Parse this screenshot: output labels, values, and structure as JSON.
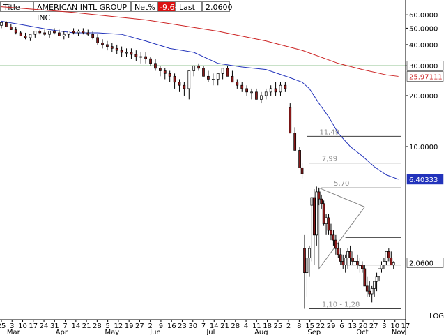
{
  "header": {
    "title_label": "Title",
    "title_value": "AMERICAN INTL GROUP INC",
    "netpct_label": "Net%",
    "netpct_value": "-9.64",
    "last_label": "Last",
    "last_value": "2.0600"
  },
  "colors": {
    "ma_long": "#cc2222",
    "ma_short": "#2233bb",
    "hline": "#228822",
    "candle_up": "#ffffff",
    "candle_down": "#8b1a1a",
    "annotation": "#a0a0a0"
  },
  "chart_data": {
    "type": "candlestick",
    "scale": "log",
    "ylim": [
      0.95,
      72
    ],
    "y_ticks": [
      "60.0000",
      "50.0000",
      "40.0000",
      "30.0000",
      "20.0000",
      "10.0000"
    ],
    "y_tick_values": [
      60,
      50,
      40,
      30,
      20,
      10
    ],
    "xlim": [
      0,
      168
    ],
    "x_day_ticks": [
      "25",
      "3",
      "10",
      "17",
      "24",
      "31",
      "7",
      "14",
      "21",
      "28",
      "5",
      "12",
      "19",
      "27",
      "2",
      "9",
      "16",
      "23",
      "30",
      "7",
      "14",
      "21",
      "28",
      "4",
      "11",
      "18",
      "25",
      "2",
      "8",
      "15",
      "22",
      "29",
      "6",
      "13",
      "20",
      "27",
      "3",
      "10",
      "17"
    ],
    "x_month_labels": [
      {
        "label": "Mar",
        "x": 5
      },
      {
        "label": "Apr",
        "x": 25
      },
      {
        "label": "May",
        "x": 46
      },
      {
        "label": "Jun",
        "x": 64
      },
      {
        "label": "Jul",
        "x": 87
      },
      {
        "label": "Aug",
        "x": 108
      },
      {
        "label": "Sep",
        "x": 130
      },
      {
        "label": "Oct",
        "x": 150
      },
      {
        "label": "Nov",
        "x": 165
      }
    ],
    "scale_label": "LOG",
    "tags": [
      {
        "value": 30.0,
        "text": "30.0000",
        "bg": "#ffffff",
        "fg": "#000000"
      },
      {
        "value": 25.97111,
        "text": "25.97111",
        "bg": "#ffffff",
        "fg": "#cc2222"
      },
      {
        "value": 6.40333,
        "text": "6.40333",
        "bg": "#2233bb",
        "fg": "#ffffff"
      },
      {
        "value": 2.06,
        "text": "2.0600",
        "bg": "#ffffff",
        "fg": "#000000"
      }
    ],
    "ma_long": {
      "x": [
        0,
        30,
        60,
        90,
        110,
        125,
        140,
        150,
        160,
        165
      ],
      "y": [
        67,
        62,
        56,
        48,
        42,
        37,
        31,
        28.5,
        26.5,
        25.97
      ]
    },
    "ma_short": {
      "x": [
        0,
        10,
        20,
        30,
        40,
        50,
        60,
        70,
        80,
        90,
        100,
        110,
        120,
        125,
        128,
        132,
        136,
        140,
        145,
        150,
        155,
        160,
        165
      ],
      "y": [
        55,
        52,
        49,
        47,
        47,
        46,
        42,
        38,
        36,
        31,
        29.5,
        28.5,
        25.5,
        24,
        22,
        18,
        15,
        12,
        10,
        8.8,
        7.6,
        6.8,
        6.4
      ]
    },
    "horizontal_line": {
      "value": 30.0
    },
    "annotations": [
      {
        "text": "11,49",
        "value": 11.49,
        "x_start": 127,
        "x_end": 166
      },
      {
        "text": "7,99",
        "value": 7.99,
        "x_start": 128,
        "x_end": 166
      },
      {
        "text": "5,70",
        "value": 5.7,
        "x_start": 133,
        "x_end": 166
      },
      {
        "text": "",
        "value": 2.9,
        "x_start": 143,
        "x_end": 166
      },
      {
        "text": "",
        "value": 2.0,
        "x_start": 143,
        "x_end": 166
      },
      {
        "text": "1,10 - 1,28",
        "value": 1.1,
        "x_start": 128,
        "x_end": 166
      }
    ],
    "triangle": [
      [
        132,
        5.7
      ],
      [
        151,
        4.4
      ],
      [
        132,
        1.9
      ]
    ],
    "candles": {
      "x": [
        0,
        2,
        4,
        6,
        8,
        10,
        12,
        14,
        16,
        18,
        20,
        22,
        24,
        26,
        28,
        30,
        32,
        34,
        36,
        38,
        40,
        42,
        44,
        46,
        48,
        50,
        52,
        54,
        56,
        58,
        60,
        62,
        64,
        66,
        68,
        70,
        72,
        74,
        76,
        78,
        80,
        82,
        84,
        86,
        88,
        90,
        92,
        94,
        96,
        98,
        100,
        102,
        104,
        106,
        108,
        110,
        112,
        114,
        116,
        118,
        120,
        122,
        124,
        125,
        126,
        127,
        128,
        129,
        130,
        131,
        132,
        133,
        134,
        135,
        136,
        137,
        138,
        139,
        140,
        141,
        142,
        143,
        144,
        145,
        146,
        147,
        148,
        149,
        150,
        151,
        152,
        153,
        154,
        155,
        156,
        157,
        158,
        159,
        160,
        161,
        162,
        163
      ],
      "open": [
        52,
        54,
        51,
        49,
        47,
        45,
        44,
        46,
        48,
        47,
        46,
        48,
        47,
        45,
        46,
        48,
        47,
        48,
        47,
        46,
        44,
        41,
        40,
        39,
        38,
        37,
        36,
        36,
        35,
        34,
        34,
        33,
        31,
        29,
        28,
        27,
        26,
        24,
        23,
        22,
        28,
        30,
        29,
        26,
        25,
        25,
        27,
        29,
        26,
        24,
        23,
        22,
        21,
        21,
        19,
        20,
        21,
        22,
        21,
        23,
        17,
        12,
        9.5,
        7.5,
        2.5,
        1.8,
        2.2,
        4.5,
        5.0,
        3.0,
        5.4,
        4.9,
        4.6,
        3.5,
        3.8,
        3.2,
        3.0,
        2.8,
        2.5,
        2.3,
        2.1,
        2.0,
        2.2,
        2.4,
        2.2,
        2.1,
        2.1,
        2.0,
        2.0,
        1.9,
        1.5,
        1.4,
        1.35,
        1.45,
        1.6,
        1.7,
        1.9,
        2.0,
        2.1,
        2.4,
        2.2,
        2.0
      ],
      "high": [
        54,
        55,
        53,
        51,
        48,
        47,
        46,
        48,
        49,
        49,
        48,
        50,
        49,
        48,
        48,
        50,
        49,
        50,
        49,
        48,
        46,
        43,
        42,
        41,
        40,
        39,
        38,
        38,
        37,
        36,
        36,
        34,
        33,
        30,
        29,
        28,
        27,
        25,
        24,
        23,
        30,
        31,
        30,
        28,
        27,
        27,
        29,
        30,
        28,
        25,
        24,
        23,
        22,
        22,
        21,
        22,
        23,
        24,
        24,
        24,
        18,
        13,
        10,
        8.0,
        3.0,
        2.2,
        2.6,
        5.0,
        5.6,
        5.8,
        5.7,
        5.2,
        4.8,
        4.0,
        4.0,
        3.5,
        3.2,
        3.0,
        2.7,
        2.5,
        2.3,
        2.3,
        2.5,
        2.6,
        2.4,
        2.3,
        2.3,
        2.2,
        2.1,
        2.0,
        1.7,
        1.6,
        1.5,
        1.6,
        1.8,
        1.9,
        2.1,
        2.2,
        2.3,
        2.5,
        2.4,
        2.1
      ],
      "low": [
        50,
        51,
        49,
        46,
        45,
        43,
        42,
        44,
        46,
        45,
        44,
        46,
        45,
        43,
        44,
        46,
        45,
        46,
        45,
        43,
        40,
        38,
        37,
        36,
        35,
        34,
        34,
        33,
        32,
        31,
        31,
        30,
        28,
        26,
        25,
        24,
        22,
        21,
        20,
        19,
        26,
        28,
        27,
        24,
        23,
        23,
        25,
        26,
        24,
        22,
        21,
        20,
        19,
        19,
        18,
        19,
        20,
        20,
        20,
        21,
        15,
        10,
        8.0,
        6.5,
        1.1,
        1.3,
        1.7,
        2.1,
        2.0,
        2.6,
        4.5,
        4.3,
        3.4,
        3.0,
        3.0,
        2.8,
        2.6,
        2.3,
        2.2,
        2.0,
        1.9,
        1.8,
        1.9,
        2.0,
        2.0,
        1.8,
        1.9,
        1.8,
        1.8,
        1.6,
        1.3,
        1.3,
        1.2,
        1.3,
        1.4,
        1.6,
        1.8,
        1.9,
        2.0,
        2.1,
        2.0,
        1.9
      ],
      "close": [
        54,
        51,
        49,
        47,
        45,
        44,
        46,
        48,
        47,
        46,
        48,
        47,
        45,
        46,
        48,
        47,
        48,
        47,
        46,
        44,
        41,
        40,
        39,
        38,
        37,
        36,
        36,
        35,
        34,
        34,
        33,
        31,
        29,
        28,
        27,
        26,
        24,
        23,
        22,
        28,
        30,
        29,
        26,
        25,
        25,
        27,
        29,
        26,
        24,
        23,
        22,
        21,
        21,
        19,
        20,
        21,
        22,
        21,
        23,
        22,
        12,
        9.5,
        7.5,
        6.9,
        1.8,
        2.2,
        2.5,
        5.0,
        3.0,
        5.4,
        4.9,
        4.6,
        3.5,
        3.8,
        3.2,
        3.0,
        2.8,
        2.5,
        2.3,
        2.1,
        2.0,
        2.2,
        2.4,
        2.2,
        2.1,
        2.1,
        2.0,
        2.0,
        1.9,
        1.5,
        1.4,
        1.35,
        1.45,
        1.6,
        1.7,
        1.9,
        2.0,
        2.1,
        2.4,
        2.2,
        2.0,
        2.06
      ]
    }
  }
}
